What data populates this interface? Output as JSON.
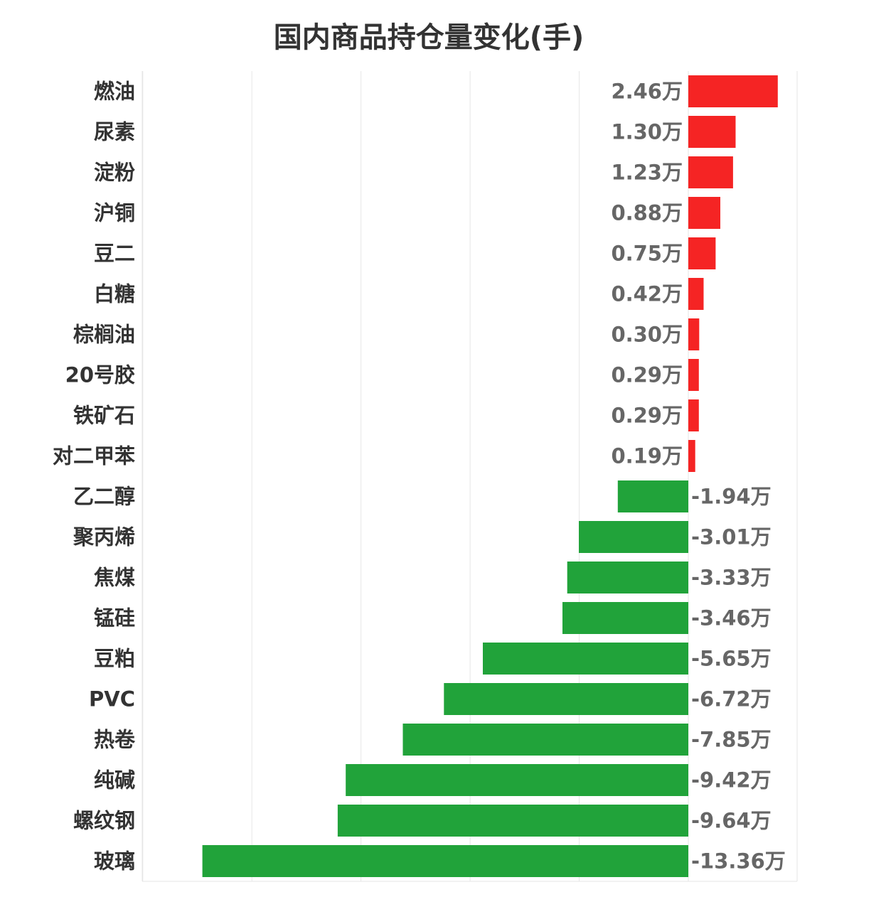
{
  "chart_data": {
    "type": "bar",
    "orientation": "horizontal",
    "title": "国内商品持仓量变化(手)",
    "unit_suffix": "万",
    "categories": [
      "燃油",
      "尿素",
      "淀粉",
      "沪铜",
      "豆二",
      "白糖",
      "棕榈油",
      "20号胶",
      "铁矿石",
      "对二甲苯",
      "乙二醇",
      "聚丙烯",
      "焦煤",
      "锰硅",
      "豆粕",
      "PVC",
      "热卷",
      "纯碱",
      "螺纹钢",
      "玻璃"
    ],
    "values": [
      2.46,
      1.3,
      1.23,
      0.88,
      0.75,
      0.42,
      0.3,
      0.29,
      0.29,
      0.19,
      -1.94,
      -3.01,
      -3.33,
      -3.46,
      -5.65,
      -6.72,
      -7.85,
      -9.42,
      -9.64,
      -13.36
    ],
    "value_labels": [
      "2.46万",
      "1.30万",
      "1.23万",
      "0.88万",
      "0.75万",
      "0.42万",
      "0.30万",
      "0.29万",
      "0.29万",
      "0.19万",
      "-1.94万",
      "-3.01万",
      "-3.33万",
      "-3.46万",
      "-5.65万",
      "-6.72万",
      "-7.85万",
      "-9.42万",
      "-9.64万",
      "-13.36万"
    ],
    "xlim": [
      -15,
      3
    ],
    "grid": true,
    "colors": {
      "positive": "#f52424",
      "negative": "#21a33a"
    }
  }
}
